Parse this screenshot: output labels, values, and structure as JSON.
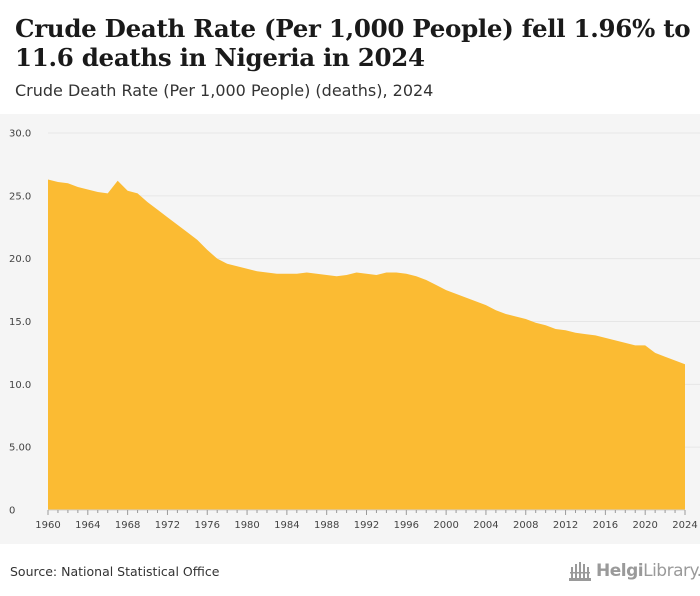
{
  "header": {
    "title": "Crude Death Rate (Per 1,000 People) fell 1.96% to 11.6 deaths in Nigeria in 2024",
    "subtitle": "Crude Death Rate (Per 1,000 People) (deaths), 2024"
  },
  "footer": {
    "source": "Source: National Statistical Office",
    "logo_text": "HelgiLibrary."
  },
  "colors": {
    "area_fill": "#fbbb33",
    "plot_background": "#f5f5f5",
    "gridline": "#e6e6e6",
    "axis_text": "#444444"
  },
  "chart_data": {
    "type": "area",
    "title": "Crude Death Rate (Per 1,000 People) (deaths), 2024",
    "xlabel": "",
    "ylabel": "",
    "ylim": [
      0,
      30
    ],
    "xlim": [
      1960,
      2024
    ],
    "yticks": [
      0,
      5,
      10,
      15,
      20,
      25,
      30
    ],
    "ytick_labels": [
      "0",
      "5.00",
      "10.0",
      "15.0",
      "20.0",
      "25.0",
      "30.0"
    ],
    "xticks": [
      1960,
      1964,
      1968,
      1972,
      1976,
      1980,
      1984,
      1988,
      1992,
      1996,
      2000,
      2004,
      2008,
      2012,
      2016,
      2020,
      2024
    ],
    "grid": true,
    "series": [
      {
        "name": "Crude Death Rate",
        "x": [
          1960,
          1961,
          1962,
          1963,
          1964,
          1965,
          1966,
          1967,
          1968,
          1969,
          1970,
          1971,
          1972,
          1973,
          1974,
          1975,
          1976,
          1977,
          1978,
          1979,
          1980,
          1981,
          1982,
          1983,
          1984,
          1985,
          1986,
          1987,
          1988,
          1989,
          1990,
          1991,
          1992,
          1993,
          1994,
          1995,
          1996,
          1997,
          1998,
          1999,
          2000,
          2001,
          2002,
          2003,
          2004,
          2005,
          2006,
          2007,
          2008,
          2009,
          2010,
          2011,
          2012,
          2013,
          2014,
          2015,
          2016,
          2017,
          2018,
          2019,
          2020,
          2021,
          2022,
          2023,
          2024
        ],
        "values": [
          26.3,
          26.1,
          26.0,
          25.7,
          25.5,
          25.3,
          25.2,
          26.2,
          25.4,
          25.2,
          24.5,
          23.9,
          23.3,
          22.7,
          22.1,
          21.5,
          20.7,
          20.0,
          19.6,
          19.4,
          19.2,
          19.0,
          18.9,
          18.8,
          18.8,
          18.8,
          18.9,
          18.8,
          18.7,
          18.6,
          18.7,
          18.9,
          18.8,
          18.7,
          18.9,
          18.9,
          18.8,
          18.6,
          18.3,
          17.9,
          17.5,
          17.2,
          16.9,
          16.6,
          16.3,
          15.9,
          15.6,
          15.4,
          15.2,
          14.9,
          14.7,
          14.4,
          14.3,
          14.1,
          14.0,
          13.9,
          13.7,
          13.5,
          13.3,
          13.1,
          13.1,
          12.5,
          12.2,
          11.9,
          11.6
        ]
      }
    ]
  }
}
